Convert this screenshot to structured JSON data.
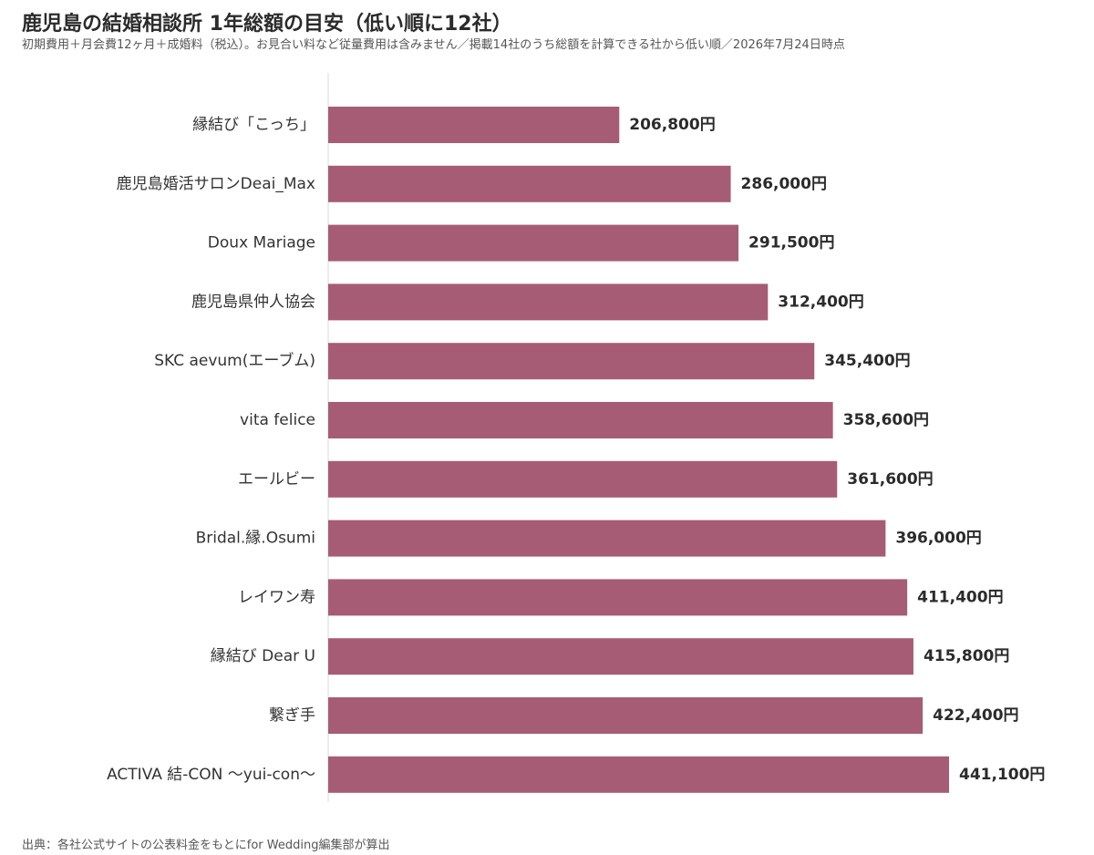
{
  "chart_data": {
    "type": "bar",
    "orientation": "horizontal",
    "title": "鹿児島の結婚相談所 1年総額の目安（低い順に12社）",
    "subtitle": "初期費用＋月会費12ヶ月＋成婚料（税込）。お見合い料など従量費用は含みません／掲載14社のうち総額を計算できる社から低い順／2026年7月24日時点",
    "source": "出典：各社公式サイトの公表料金をもとにfor Wedding編集部が算出",
    "categories": [
      "縁結び「こっち」",
      "鹿児島婚活サロンDeai_Max",
      "Doux Mariage",
      "鹿児島県仲人協会",
      "SKC aevum(エーブム)",
      "vita felice",
      "エールビー",
      "Bridal.縁.Osumi",
      "レイワン寿",
      "縁結び Dear U",
      "繋ぎ手",
      "ACTIVA 結-CON 〜yui-con〜"
    ],
    "values": [
      206800,
      286000,
      291500,
      312400,
      345400,
      358600,
      361600,
      396000,
      411400,
      415800,
      422400,
      441100
    ],
    "value_labels": [
      "206,800円",
      "286,000円",
      "291,500円",
      "312,400円",
      "345,400円",
      "358,600円",
      "361,600円",
      "396,000円",
      "411,400円",
      "415,800円",
      "422,400円",
      "441,100円"
    ],
    "xlim": [
      0,
      441100
    ],
    "grid": false,
    "legend": "none",
    "bar_color": "#a65c74",
    "axis_line_color": "#d9d9d9"
  }
}
